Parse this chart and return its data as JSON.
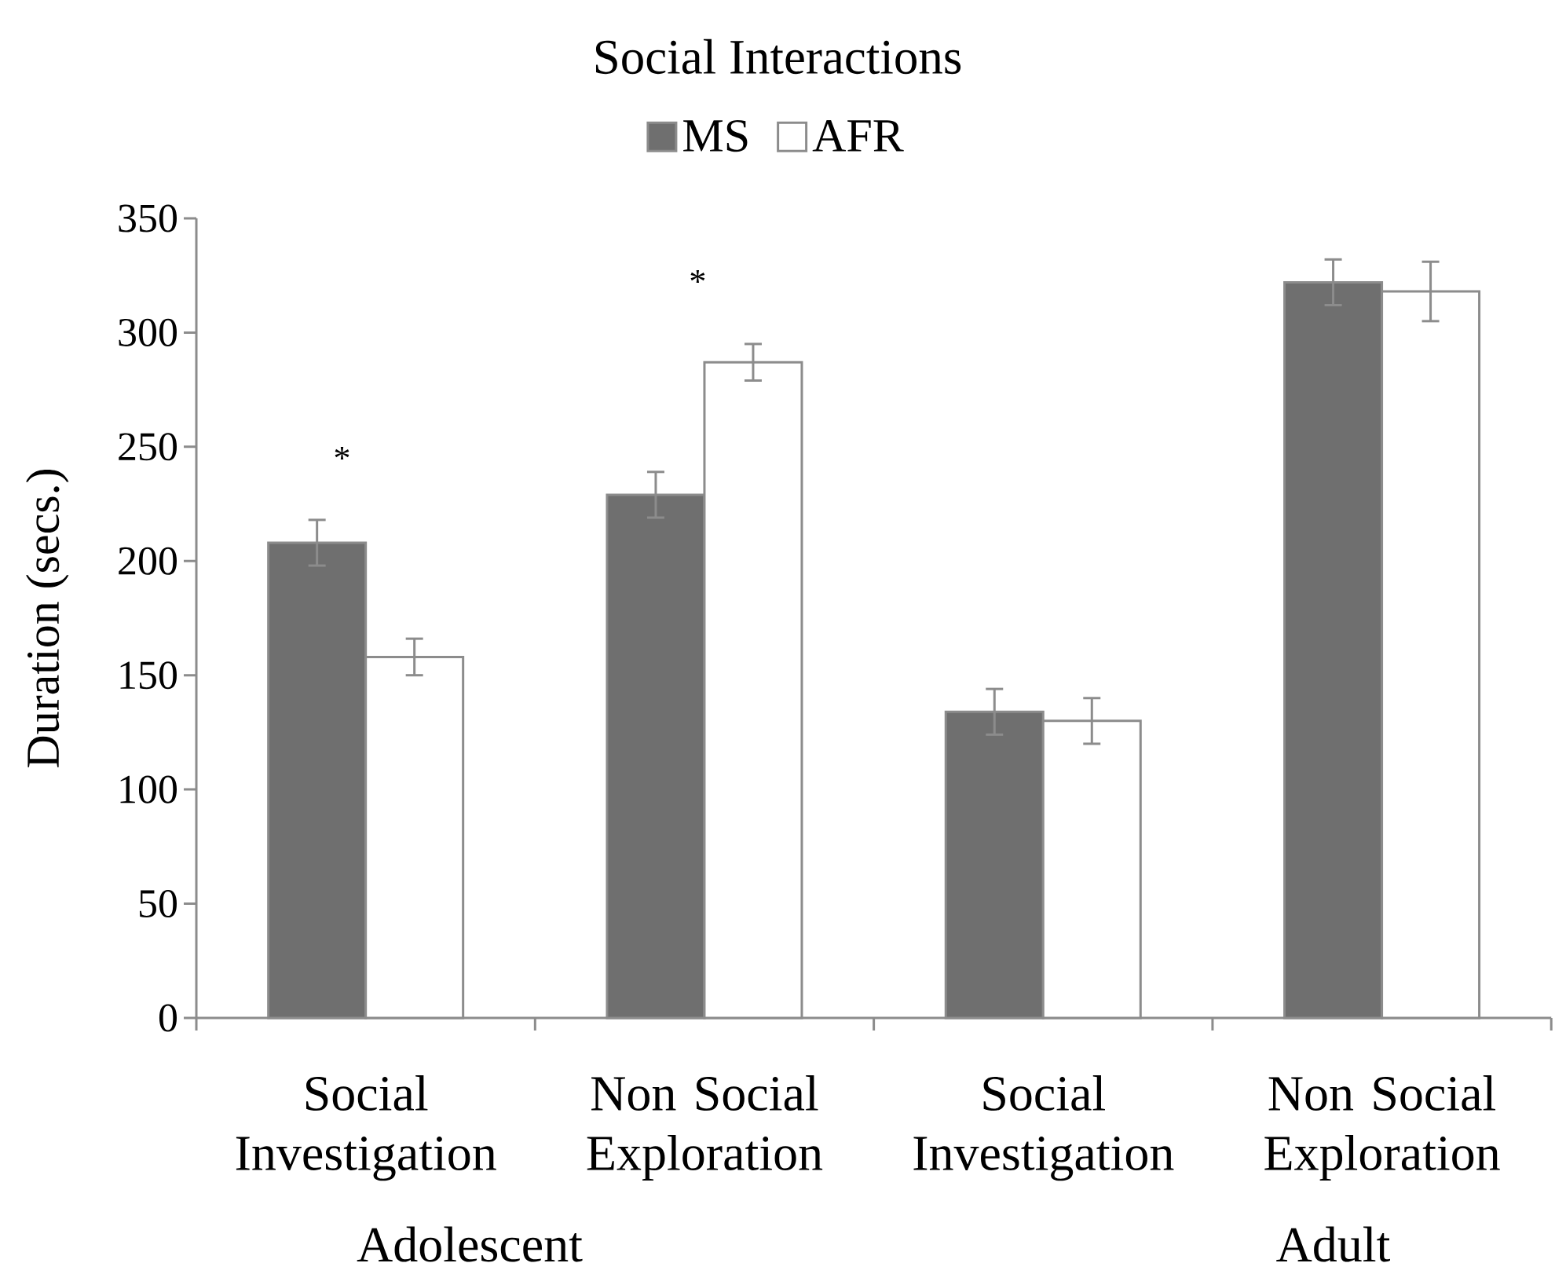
{
  "chart_data": {
    "type": "bar",
    "title": "Social Interactions",
    "ylabel": "Duration (secs.)",
    "categories": [
      "Social Investigation",
      "Non Social Exploration",
      "Social Investigation",
      "Non Social Exploration"
    ],
    "series": [
      {
        "name": "MS",
        "color": "#6f6f6f",
        "values": [
          208,
          229,
          134,
          322
        ],
        "errors": [
          10,
          10,
          10,
          10
        ]
      },
      {
        "name": "AFR",
        "color": "#ffffff",
        "values": [
          158,
          287,
          130,
          318
        ],
        "errors": [
          8,
          8,
          10,
          13
        ]
      }
    ],
    "ylim": [
      0,
      350
    ],
    "yticks": [
      0,
      50,
      100,
      150,
      200,
      250,
      300,
      350
    ],
    "legend": "top",
    "annotations": [
      "*",
      "*",
      "Adolescent",
      "Adult"
    ]
  }
}
